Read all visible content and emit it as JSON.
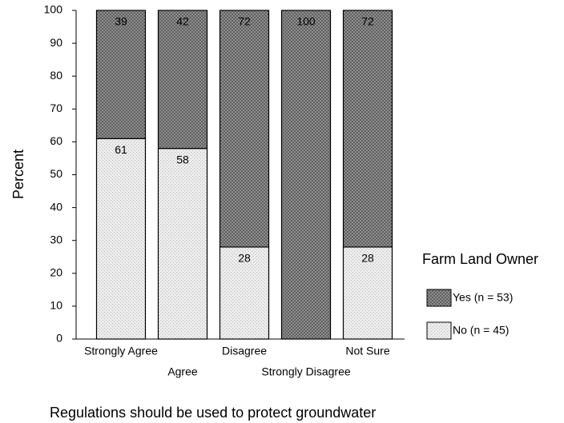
{
  "chart_data": {
    "type": "stacked_bar",
    "title": "Regulations should be used to protect groundwater",
    "y_label": "Percent",
    "legend_title": "Farm Land Owner",
    "categories": [
      "Strongly Agree",
      "Agree",
      "Disagree",
      "Strongly Disagree",
      "Not Sure"
    ],
    "series": [
      {
        "name": "No (n = 45)",
        "color": "#ececec",
        "values": [
          61,
          58,
          28,
          0,
          28
        ]
      },
      {
        "name": "Yes (n = 53)",
        "color": "#9a9a9a",
        "values": [
          39,
          42,
          72,
          100,
          72
        ]
      }
    ],
    "ylim": [
      0,
      100
    ],
    "yticks": [
      0,
      10,
      20,
      30,
      40,
      50,
      60,
      70,
      80,
      90,
      100
    ],
    "legend": "right"
  }
}
